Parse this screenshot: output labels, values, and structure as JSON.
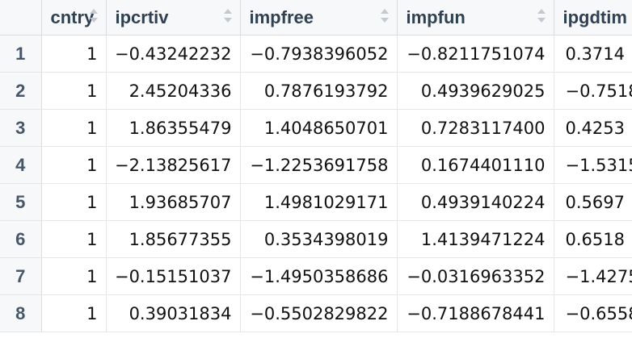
{
  "columns": [
    {
      "name": "cntry"
    },
    {
      "name": "ipcrtiv"
    },
    {
      "name": "impfree"
    },
    {
      "name": "impfun"
    },
    {
      "name": "ipgdtim"
    }
  ],
  "rows": [
    {
      "id": "1",
      "cells": [
        "1",
        "−0.43242232",
        "−0.7938396052",
        "−0.8211751074",
        "0.3714"
      ]
    },
    {
      "id": "2",
      "cells": [
        "1",
        "2.45204336",
        "0.7876193792",
        "0.4939629025",
        "−0.7518"
      ]
    },
    {
      "id": "3",
      "cells": [
        "1",
        "1.86355479",
        "1.4048650701",
        "0.7283117400",
        "0.4253"
      ]
    },
    {
      "id": "4",
      "cells": [
        "1",
        "−2.13825617",
        "−1.2253691758",
        "0.1674401110",
        "−1.5315"
      ]
    },
    {
      "id": "5",
      "cells": [
        "1",
        "1.93685707",
        "1.4981029171",
        "0.4939140224",
        "0.5697"
      ]
    },
    {
      "id": "6",
      "cells": [
        "1",
        "1.85677355",
        "0.3534398019",
        "1.4139471224",
        "0.6518"
      ]
    },
    {
      "id": "7",
      "cells": [
        "1",
        "−0.15151037",
        "−1.4950358686",
        "−0.0316963352",
        "−1.4275"
      ]
    },
    {
      "id": "8",
      "cells": [
        "1",
        "0.39031834",
        "−0.5502829822",
        "−0.7188678441",
        "−0.6558"
      ]
    }
  ],
  "colors": {
    "header_bg": "#f7f8fa",
    "grid_line": "#e3e6ea",
    "header_text": "#2f4152",
    "cell_text": "#111111"
  },
  "icons": {
    "sort": "sort-arrows-icon"
  }
}
